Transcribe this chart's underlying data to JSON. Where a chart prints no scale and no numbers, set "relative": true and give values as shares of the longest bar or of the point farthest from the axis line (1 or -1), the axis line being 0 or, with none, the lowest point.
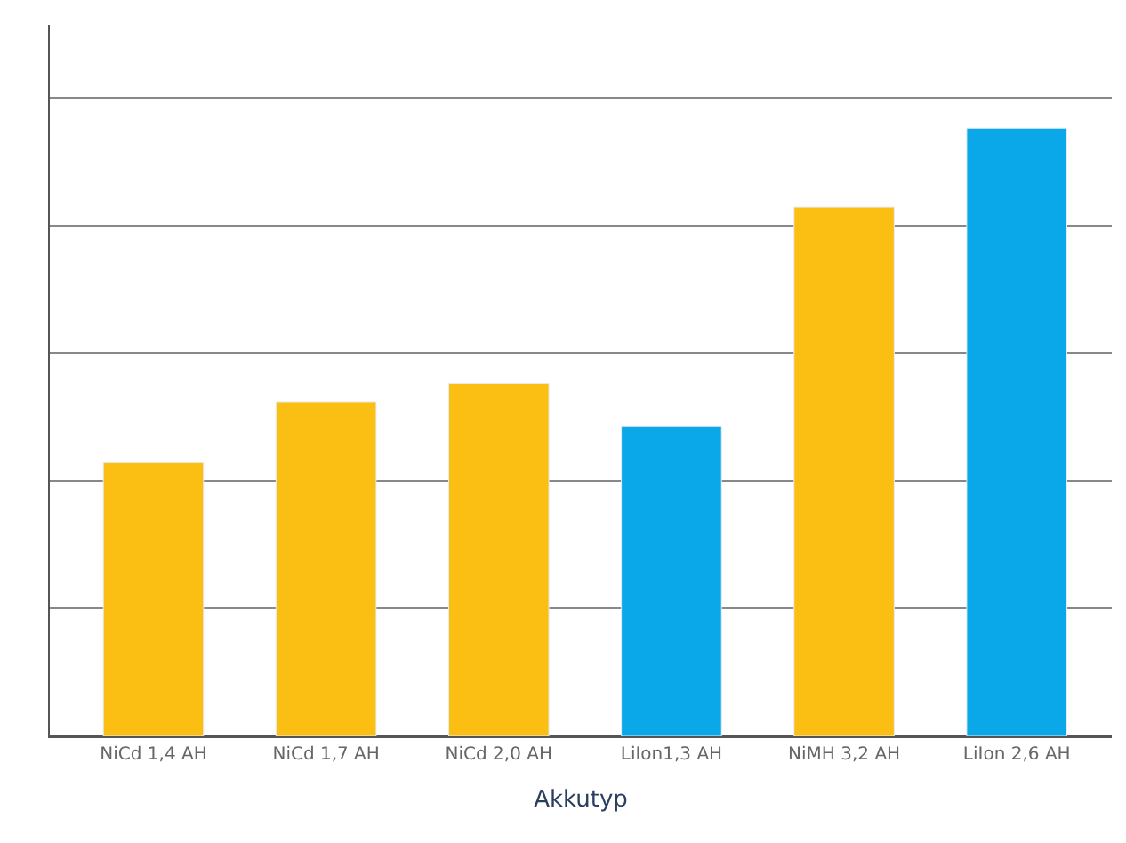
{
  "chart_data": {
    "type": "bar",
    "xlabel": "Akkutyp",
    "relative": true,
    "grid": "y",
    "categories": [
      "NiCd 1,4 AH",
      "NiCd 1,7 AH",
      "NiCd 2,0 AH",
      "LiIon1,3 AH",
      "NiMH 3,2 AH",
      "LiIon 2,6 AH"
    ],
    "values": [
      0.45,
      0.55,
      0.58,
      0.51,
      0.87,
      1.0
    ],
    "colors": [
      "#fbbf14",
      "#fbbf14",
      "#fbbf14",
      "#0aa8e8",
      "#fbbf14",
      "#0aa8e8"
    ]
  }
}
